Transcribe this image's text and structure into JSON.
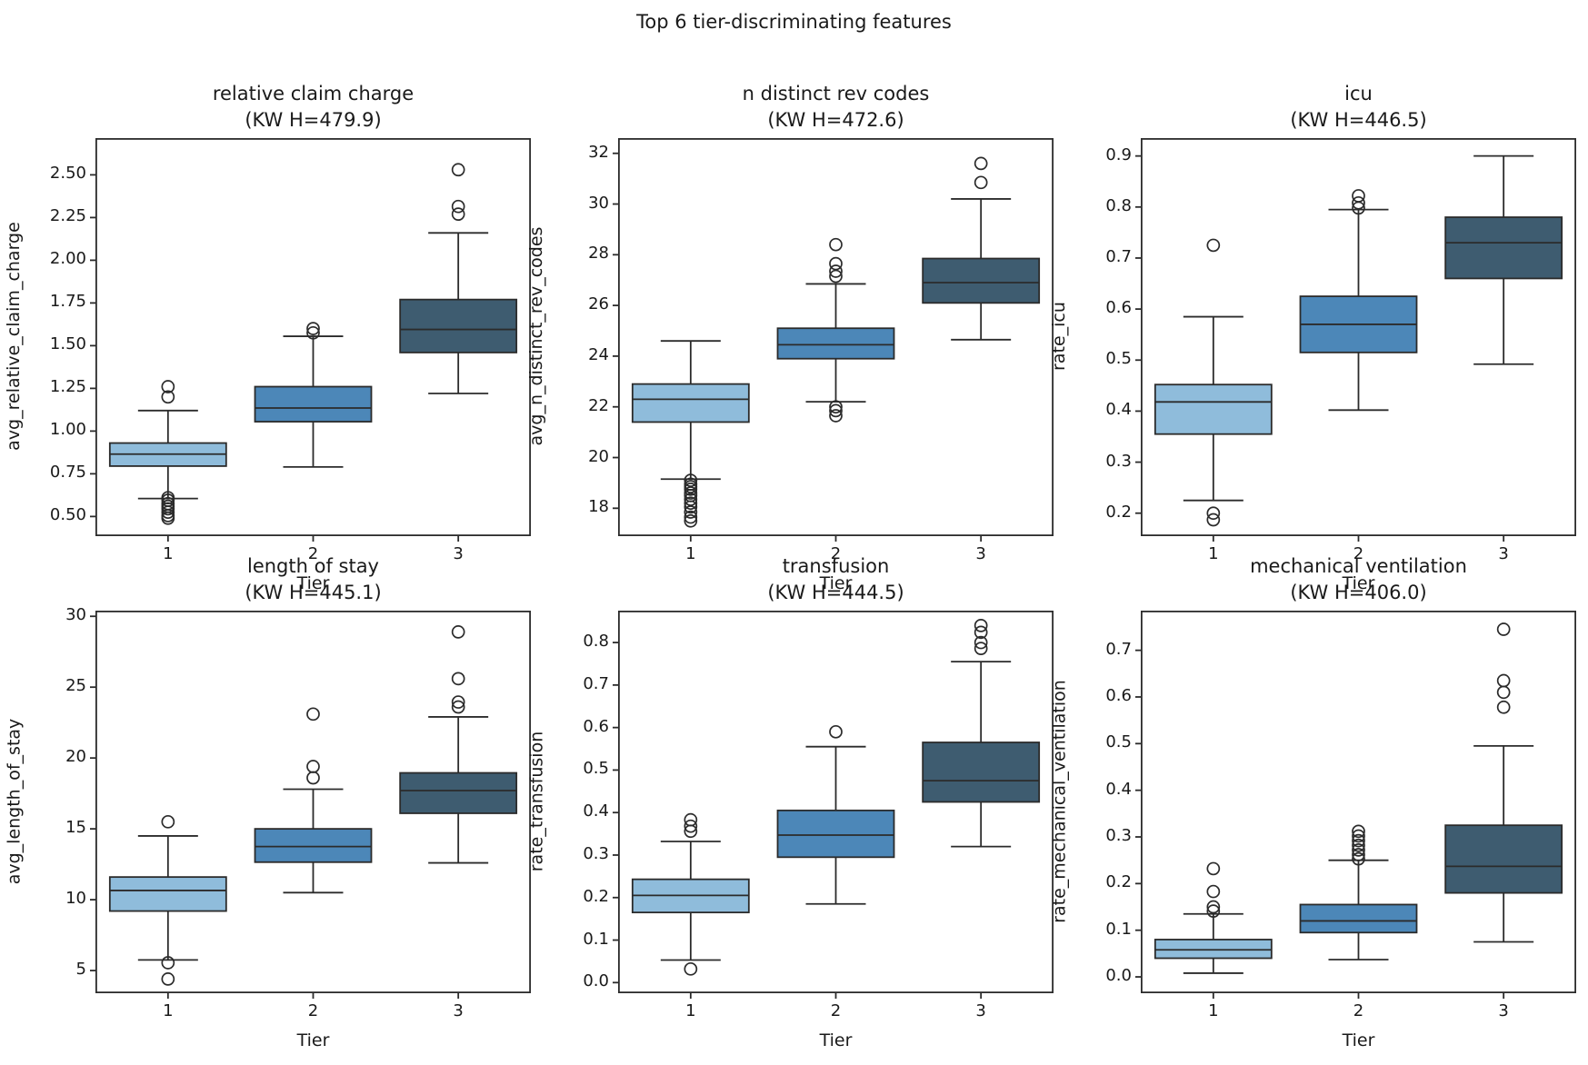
{
  "figure": {
    "suptitle": "Top 6 tier-discriminating features",
    "colors": {
      "tier1": "#8fbcdb",
      "tier2": "#4c87b8",
      "tier3": "#3e5c70",
      "edge": "#2b2b2b",
      "text": "#1a1a1a",
      "background": "#ffffff"
    }
  },
  "chart_data": [
    {
      "type": "box",
      "title": "relative claim charge",
      "subtitle": "(KW H=479.9)",
      "ylabel": "avg_relative_claim_charge",
      "xlabel": "Tier",
      "categories": [
        "1",
        "2",
        "3"
      ],
      "ylim": [
        0.385,
        2.715
      ],
      "yticks": [
        0.5,
        0.75,
        1.0,
        1.25,
        1.5,
        1.75,
        2.0,
        2.25,
        2.5
      ],
      "ytick_labels": [
        "0.50",
        "0.75",
        "1.00",
        "1.25",
        "1.50",
        "1.75",
        "2.00",
        "2.25",
        "2.50"
      ],
      "boxes": [
        {
          "tier": "1",
          "whislo": 0.605,
          "q1": 0.795,
          "med": 0.865,
          "q3": 0.93,
          "whishi": 1.12,
          "outliers": [
            1.26,
            1.2,
            0.61,
            0.595,
            0.575,
            0.56,
            0.545,
            0.525,
            0.505,
            0.49
          ]
        },
        {
          "tier": "2",
          "whislo": 0.79,
          "q1": 1.055,
          "med": 1.135,
          "q3": 1.26,
          "whishi": 1.555,
          "outliers": [
            1.6,
            1.575
          ]
        },
        {
          "tier": "3",
          "whislo": 1.22,
          "q1": 1.46,
          "med": 1.595,
          "q3": 1.77,
          "whishi": 2.16,
          "outliers": [
            2.53,
            2.315,
            2.27
          ]
        }
      ]
    },
    {
      "type": "box",
      "title": "n distinct rev codes",
      "subtitle": "(KW H=472.6)",
      "ylabel": "avg_n_distinct_rev_codes",
      "xlabel": "Tier",
      "categories": [
        "1",
        "2",
        "3"
      ],
      "ylim": [
        16.9,
        32.6
      ],
      "yticks": [
        18,
        20,
        22,
        24,
        26,
        28,
        30,
        32
      ],
      "ytick_labels": [
        "18",
        "20",
        "22",
        "24",
        "26",
        "28",
        "30",
        "32"
      ],
      "boxes": [
        {
          "tier": "1",
          "whislo": 19.15,
          "q1": 21.4,
          "med": 22.3,
          "q3": 22.9,
          "whishi": 24.6,
          "outliers": [
            19.1,
            18.95,
            18.85,
            18.75,
            18.6,
            18.5,
            18.35,
            18.2,
            18.05,
            17.85,
            17.65,
            17.5
          ]
        },
        {
          "tier": "2",
          "whislo": 22.2,
          "q1": 23.9,
          "med": 24.45,
          "q3": 25.1,
          "whishi": 26.85,
          "outliers": [
            28.4,
            27.65,
            27.35,
            27.15,
            22.0,
            21.85,
            21.65
          ]
        },
        {
          "tier": "3",
          "whislo": 24.65,
          "q1": 26.1,
          "med": 26.9,
          "q3": 27.85,
          "whishi": 30.2,
          "outliers": [
            31.6,
            30.85
          ]
        }
      ]
    },
    {
      "type": "box",
      "title": "icu",
      "subtitle": "(KW H=446.5)",
      "ylabel": "rate_icu",
      "xlabel": "Tier",
      "categories": [
        "1",
        "2",
        "3"
      ],
      "ylim": [
        0.155,
        0.935
      ],
      "yticks": [
        0.2,
        0.3,
        0.4,
        0.5,
        0.6,
        0.7,
        0.8,
        0.9
      ],
      "ytick_labels": [
        "0.2",
        "0.3",
        "0.4",
        "0.5",
        "0.6",
        "0.7",
        "0.8",
        "0.9"
      ],
      "boxes": [
        {
          "tier": "1",
          "whislo": 0.225,
          "q1": 0.355,
          "med": 0.418,
          "q3": 0.452,
          "whishi": 0.585,
          "outliers": [
            0.725,
            0.2,
            0.187
          ]
        },
        {
          "tier": "2",
          "whislo": 0.402,
          "q1": 0.515,
          "med": 0.57,
          "q3": 0.625,
          "whishi": 0.795,
          "outliers": [
            0.822,
            0.808,
            0.798
          ]
        },
        {
          "tier": "3",
          "whislo": 0.492,
          "q1": 0.66,
          "med": 0.73,
          "q3": 0.78,
          "whishi": 0.9,
          "outliers": []
        }
      ]
    },
    {
      "type": "box",
      "title": "length of stay",
      "subtitle": "(KW H=445.1)",
      "ylabel": "avg_length_of_stay",
      "xlabel": "Tier",
      "categories": [
        "1",
        "2",
        "3"
      ],
      "ylim": [
        3.4,
        30.4
      ],
      "yticks": [
        5,
        10,
        15,
        20,
        25,
        30
      ],
      "ytick_labels": [
        "5",
        "10",
        "15",
        "20",
        "25",
        "30"
      ],
      "boxes": [
        {
          "tier": "1",
          "whislo": 5.75,
          "q1": 9.2,
          "med": 10.65,
          "q3": 11.6,
          "whishi": 14.5,
          "outliers": [
            15.5,
            5.55,
            4.4
          ]
        },
        {
          "tier": "2",
          "whislo": 10.5,
          "q1": 12.65,
          "med": 13.75,
          "q3": 15.0,
          "whishi": 17.8,
          "outliers": [
            23.1,
            19.4,
            18.6
          ]
        },
        {
          "tier": "3",
          "whislo": 12.6,
          "q1": 16.1,
          "med": 17.7,
          "q3": 18.95,
          "whishi": 22.9,
          "outliers": [
            28.9,
            25.6,
            23.95,
            23.6
          ]
        }
      ]
    },
    {
      "type": "box",
      "title": "transfusion",
      "subtitle": "(KW H=444.5)",
      "ylabel": "rate_transfusion",
      "xlabel": "Tier",
      "categories": [
        "1",
        "2",
        "3"
      ],
      "ylim": [
        -0.025,
        0.875
      ],
      "yticks": [
        0.0,
        0.1,
        0.2,
        0.3,
        0.4,
        0.5,
        0.6,
        0.7,
        0.8
      ],
      "ytick_labels": [
        "0.0",
        "0.1",
        "0.2",
        "0.3",
        "0.4",
        "0.5",
        "0.6",
        "0.7",
        "0.8"
      ],
      "boxes": [
        {
          "tier": "1",
          "whislo": 0.053,
          "q1": 0.165,
          "med": 0.205,
          "q3": 0.243,
          "whishi": 0.332,
          "outliers": [
            0.383,
            0.368,
            0.356,
            0.032
          ]
        },
        {
          "tier": "2",
          "whislo": 0.185,
          "q1": 0.295,
          "med": 0.347,
          "q3": 0.405,
          "whishi": 0.555,
          "outliers": [
            0.59
          ]
        },
        {
          "tier": "3",
          "whislo": 0.32,
          "q1": 0.425,
          "med": 0.475,
          "q3": 0.565,
          "whishi": 0.755,
          "outliers": [
            0.84,
            0.824,
            0.8,
            0.786
          ]
        }
      ]
    },
    {
      "type": "box",
      "title": "mechanical ventilation",
      "subtitle": "(KW H=406.0)",
      "ylabel": "rate_mechanical_ventilation",
      "xlabel": "Tier",
      "categories": [
        "1",
        "2",
        "3"
      ],
      "ylim": [
        -0.035,
        0.785
      ],
      "yticks": [
        0.0,
        0.1,
        0.2,
        0.3,
        0.4,
        0.5,
        0.6,
        0.7
      ],
      "ytick_labels": [
        "0.0",
        "0.1",
        "0.2",
        "0.3",
        "0.4",
        "0.5",
        "0.6",
        "0.7"
      ],
      "boxes": [
        {
          "tier": "1",
          "whislo": 0.008,
          "q1": 0.04,
          "med": 0.058,
          "q3": 0.08,
          "whishi": 0.135,
          "outliers": [
            0.232,
            0.183,
            0.15,
            0.141
          ]
        },
        {
          "tier": "2",
          "whislo": 0.037,
          "q1": 0.095,
          "med": 0.12,
          "q3": 0.155,
          "whishi": 0.25,
          "outliers": [
            0.312,
            0.302,
            0.292,
            0.282,
            0.272,
            0.262,
            0.253
          ]
        },
        {
          "tier": "3",
          "whislo": 0.075,
          "q1": 0.18,
          "med": 0.237,
          "q3": 0.325,
          "whishi": 0.495,
          "outliers": [
            0.745,
            0.635,
            0.61,
            0.578
          ]
        }
      ]
    }
  ]
}
